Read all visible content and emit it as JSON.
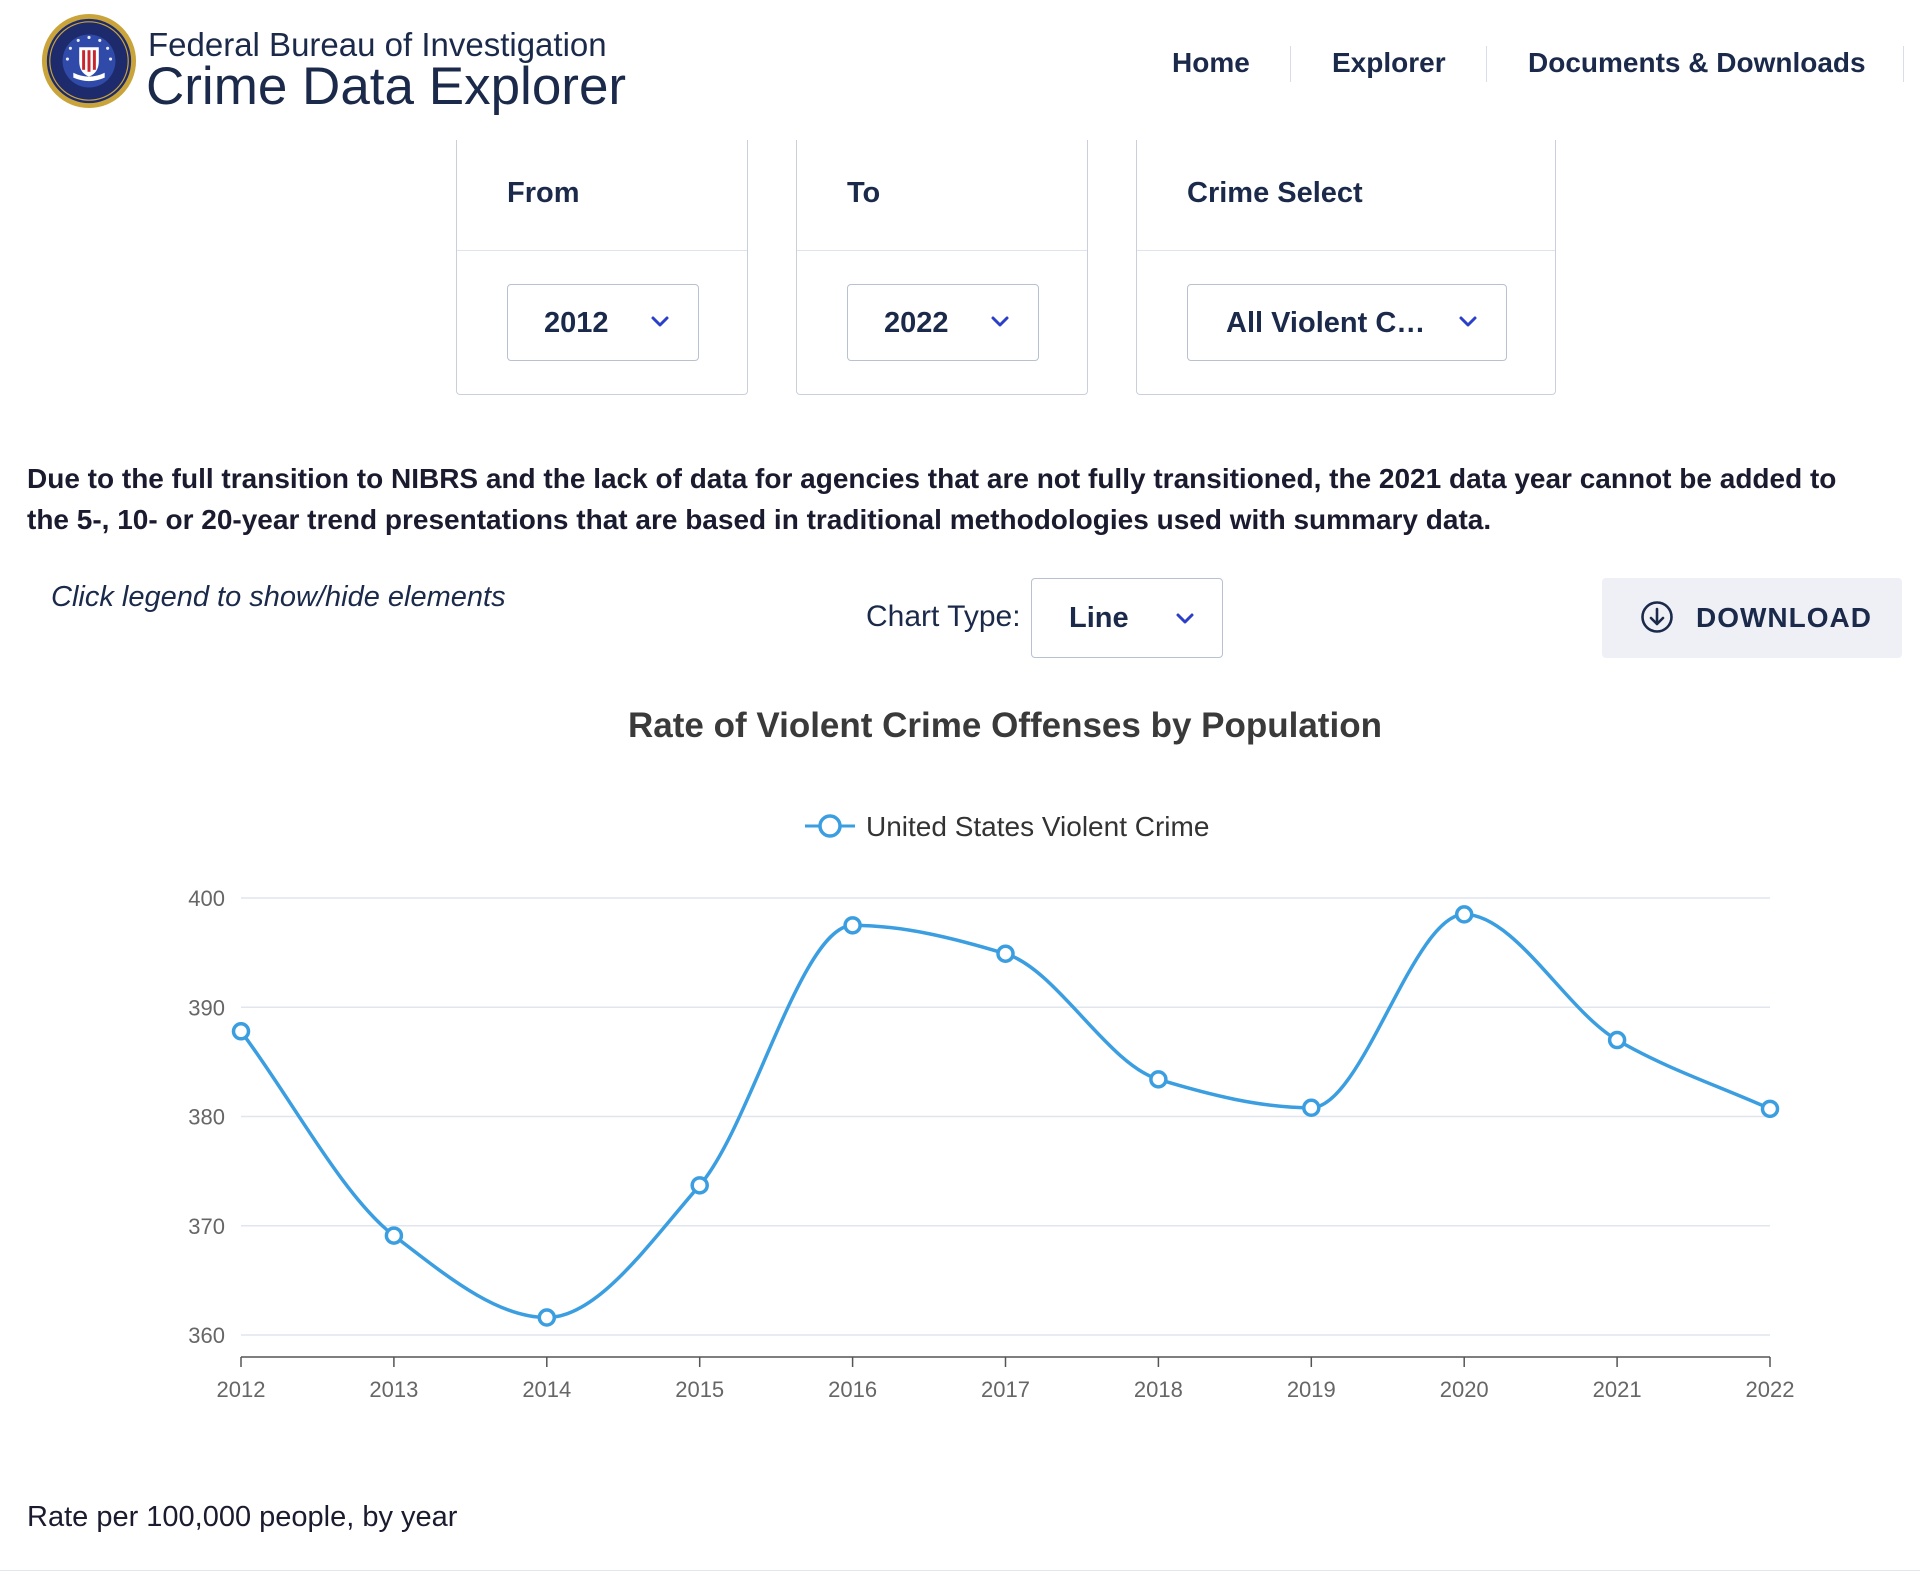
{
  "header": {
    "org_name": "Federal Bureau of Investigation",
    "app_name": "Crime Data Explorer",
    "nav": [
      "Home",
      "Explorer",
      "Documents & Downloads"
    ]
  },
  "filters": {
    "from": {
      "label": "From",
      "value": "2012"
    },
    "to": {
      "label": "To",
      "value": "2022"
    },
    "crime": {
      "label": "Crime Select",
      "value": "All Violent C…"
    }
  },
  "notice": {
    "line1": "Due to the full transition to NIBRS and the lack of data for agencies that are not fully transitioned, the 2021 data year cannot be added to",
    "line2": "the 5-, 10- or 20-year trend presentations that are based in traditional methodologies used with summary data."
  },
  "controls": {
    "hint": "Click legend to show/hide elements",
    "chart_type_label": "Chart Type:",
    "chart_type_value": "Line",
    "download_label": "DOWNLOAD"
  },
  "colors": {
    "accent": "#3a9ee0",
    "chevron": "#2b3fc8",
    "text": "#1b2a4a"
  },
  "chart_data": {
    "type": "line",
    "title": "Rate of Violent Crime Offenses by Population",
    "x": [
      "2012",
      "2013",
      "2014",
      "2015",
      "2016",
      "2017",
      "2018",
      "2019",
      "2020",
      "2021",
      "2022"
    ],
    "series": [
      {
        "name": "United States Violent Crime",
        "values": [
          387.8,
          369.1,
          361.6,
          373.7,
          397.5,
          394.9,
          383.4,
          380.8,
          398.5,
          387.0,
          380.7
        ]
      }
    ],
    "ylim": [
      360,
      400
    ],
    "yticks": [
      360,
      370,
      380,
      390,
      400
    ],
    "legend": "top-center",
    "grid": true,
    "curve": "smooth"
  },
  "footnote": "Rate per 100,000 people, by year"
}
